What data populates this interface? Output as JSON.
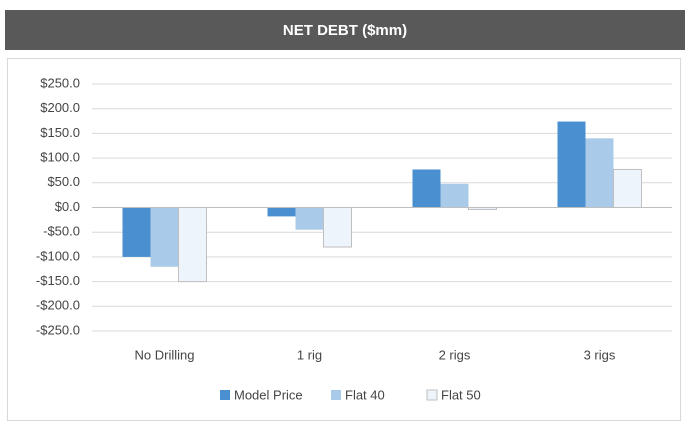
{
  "chart_data": {
    "type": "bar",
    "title": "NET DEBT ($mm)",
    "categories": [
      "No Drilling",
      "1 rig",
      "2 rigs",
      "3 rigs"
    ],
    "series": [
      {
        "name": "Model Price",
        "color": "#4a8fcf",
        "values": [
          -100,
          -18,
          77,
          174
        ]
      },
      {
        "name": "Flat 40",
        "color": "#a9cbe9",
        "values": [
          -120,
          -45,
          48,
          140
        ]
      },
      {
        "name": "Flat 50",
        "color": "#eef4fb",
        "values": [
          -150,
          -80,
          -4,
          77
        ]
      }
    ],
    "ylim": [
      -250,
      250
    ],
    "yticks": [
      {
        "value": -250,
        "label": "-$250.0"
      },
      {
        "value": -200,
        "label": "-$200.0"
      },
      {
        "value": -150,
        "label": "-$150.0"
      },
      {
        "value": -100,
        "label": "-$100.0"
      },
      {
        "value": -50,
        "label": "-$50.0"
      },
      {
        "value": 0,
        "label": "$0.0"
      },
      {
        "value": 50,
        "label": "$50.0"
      },
      {
        "value": 100,
        "label": "$100.0"
      },
      {
        "value": 150,
        "label": "$150.0"
      },
      {
        "value": 200,
        "label": "$200.0"
      },
      {
        "value": 250,
        "label": "$250.0"
      }
    ],
    "grid": true,
    "legend": "bottom"
  }
}
